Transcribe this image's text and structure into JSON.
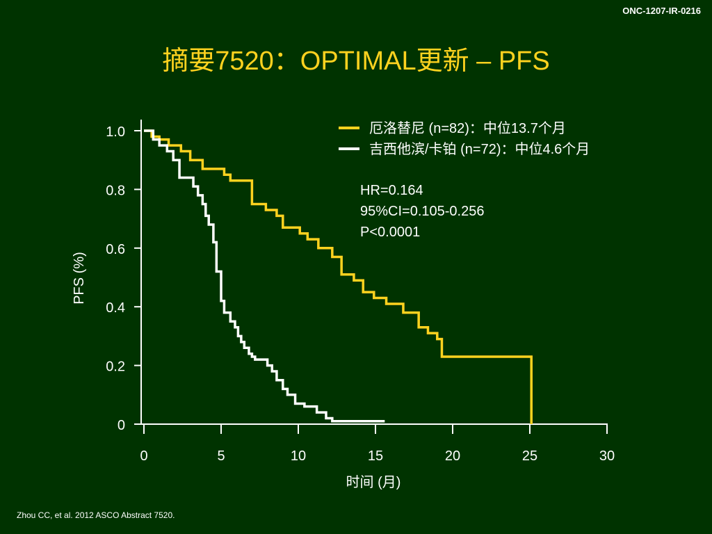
{
  "slide": {
    "code": "ONC-1207-IR-0216",
    "title": "摘要7520：OPTIMAL更新 – PFS",
    "footer": "Zhou CC, et al. 2012 ASCO Abstract 7520."
  },
  "chart_data": {
    "type": "line",
    "subtype": "kaplan-meier-step",
    "xlabel": "时间 (月)",
    "ylabel": "PFS (%)",
    "xlim": [
      0,
      30
    ],
    "ylim": [
      0,
      1.0
    ],
    "x_ticks": [
      0,
      5,
      10,
      15,
      20,
      25,
      30
    ],
    "x_tick_labels": [
      "0",
      "5",
      "10",
      "15",
      "20",
      "25",
      "30"
    ],
    "y_ticks": [
      0,
      0.2,
      0.4,
      0.6,
      0.8,
      1.0
    ],
    "y_tick_labels": [
      "0",
      "0.2",
      "0.4",
      "0.6",
      "0.8",
      "1.0"
    ],
    "grid": false,
    "legend_position": "top-right",
    "series": [
      {
        "name": "厄洛替尼 (n=82)：中位13.7个月",
        "color": "#ffd21f",
        "x": [
          0,
          0.5,
          1.0,
          1.6,
          2.4,
          3.0,
          3.8,
          5.2,
          5.6,
          7.0,
          7.9,
          8.6,
          9.0,
          10.1,
          10.6,
          11.3,
          12.2,
          12.8,
          13.6,
          14.2,
          14.9,
          15.7,
          16.8,
          17.8,
          18.4,
          19.0,
          19.3,
          25.0,
          25.1
        ],
        "y": [
          1.0,
          0.98,
          0.97,
          0.95,
          0.93,
          0.9,
          0.87,
          0.85,
          0.83,
          0.75,
          0.73,
          0.71,
          0.67,
          0.65,
          0.63,
          0.6,
          0.57,
          0.51,
          0.49,
          0.45,
          0.43,
          0.41,
          0.38,
          0.33,
          0.31,
          0.29,
          0.23,
          0.23,
          0
        ]
      },
      {
        "name": "吉西他滨/卡铂 (n=72)：中位4.6个月",
        "color": "#ffffff",
        "x": [
          0,
          0.6,
          1.0,
          1.5,
          1.9,
          2.3,
          3.2,
          3.5,
          3.8,
          4.0,
          4.2,
          4.5,
          4.7,
          5.0,
          5.2,
          5.6,
          5.9,
          6.1,
          6.3,
          6.5,
          6.8,
          7.0,
          7.2,
          8.0,
          8.3,
          8.6,
          9.0,
          9.3,
          9.8,
          10.4,
          11.2,
          11.8,
          12.2,
          12.8,
          15.6
        ],
        "y": [
          1.0,
          0.97,
          0.95,
          0.93,
          0.9,
          0.84,
          0.81,
          0.78,
          0.75,
          0.71,
          0.68,
          0.62,
          0.52,
          0.42,
          0.38,
          0.35,
          0.33,
          0.3,
          0.28,
          0.26,
          0.24,
          0.23,
          0.22,
          0.2,
          0.18,
          0.15,
          0.12,
          0.1,
          0.07,
          0.06,
          0.04,
          0.02,
          0.01,
          0.01,
          0.01
        ]
      }
    ],
    "annotations": [
      "HR=0.164",
      "95%CI=0.105-0.256",
      "P<0.0001"
    ]
  }
}
